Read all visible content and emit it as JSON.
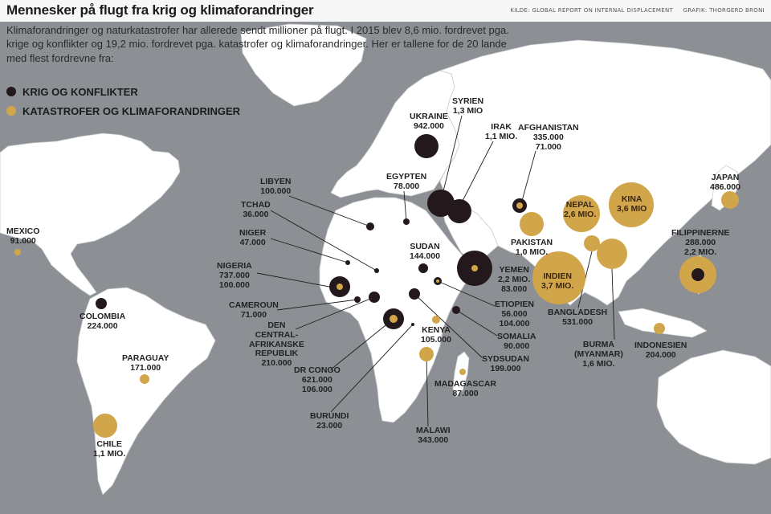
{
  "header": {
    "title": "Mennesker på flugt fra krig og klimaforandringer",
    "source": "KILDE: GLOBAL REPORT ON INTERNAL DISPLACEMENT",
    "credit": "GRAFIK: THORGERD BRONI"
  },
  "intro": "Klimaforandringer og naturkatastrofer har allerede sendt millioner på flugt. I 2015 blev 8,6 mio. fordrevet pga. krige og konflikter og 19,2 mio. fordrevet pga. katastrofer og klimaforan­dringer. Her er tallene for de 20 lande med flest fordrevne fra:",
  "legend": [
    {
      "label": "KRIG OG KONFLIKTER",
      "color": "#23181b"
    },
    {
      "label": "KATASTROFER OG KLIMAFORANDRINGER",
      "color": "#d1a54a"
    }
  ],
  "colors": {
    "conflict": "#23181b",
    "disaster": "#d1a54a",
    "land": "#ffffff",
    "sea": "#8c9094"
  },
  "countries": [
    {
      "id": "mexico",
      "lines": [
        "MEXICO",
        "91.000"
      ]
    },
    {
      "id": "colombia",
      "lines": [
        "COLOMBIA",
        "224.000"
      ]
    },
    {
      "id": "paraguay",
      "lines": [
        "PARAGUAY",
        "171.000"
      ]
    },
    {
      "id": "chile",
      "lines": [
        "CHILE",
        "1,1 MIO."
      ]
    },
    {
      "id": "libyen",
      "lines": [
        "LIBYEN",
        "100.000"
      ]
    },
    {
      "id": "tchad",
      "lines": [
        "TCHAD",
        "36.000"
      ]
    },
    {
      "id": "niger",
      "lines": [
        "NIGER",
        "47.000"
      ]
    },
    {
      "id": "nigeria",
      "lines": [
        "NIGERIA",
        "737.000",
        "100.000"
      ]
    },
    {
      "id": "cameroun",
      "lines": [
        "CAMEROUN",
        "71.000"
      ]
    },
    {
      "id": "car",
      "lines": [
        "DEN",
        "CENTRAL-",
        "AFRIKANSKE",
        "REPUBLIK",
        "210.000"
      ]
    },
    {
      "id": "drcongo",
      "lines": [
        "DR CONGO",
        "621.000",
        "106.000"
      ]
    },
    {
      "id": "burundi",
      "lines": [
        "BURUNDI",
        "23.000"
      ]
    },
    {
      "id": "malawi",
      "lines": [
        "MALAWI",
        "343.000"
      ]
    },
    {
      "id": "madagascar",
      "lines": [
        "MADAGASCAR",
        "87.000"
      ]
    },
    {
      "id": "kenya",
      "lines": [
        "KENYA",
        "105.000"
      ]
    },
    {
      "id": "sydsudan",
      "lines": [
        "SYDSUDAN",
        "199.000"
      ]
    },
    {
      "id": "somalia",
      "lines": [
        "SOMALIA",
        "90.000"
      ]
    },
    {
      "id": "etiopien",
      "lines": [
        "ETIOPIEN",
        "56.000",
        "104.000"
      ]
    },
    {
      "id": "yemen",
      "lines": [
        "YEMEN",
        "2,2 MIO.",
        "83.000"
      ]
    },
    {
      "id": "sudan",
      "lines": [
        "SUDAN",
        "144.000"
      ]
    },
    {
      "id": "egypten",
      "lines": [
        "EGYPTEN",
        "78.000"
      ]
    },
    {
      "id": "ukraine",
      "lines": [
        "UKRAINE",
        "942.000"
      ]
    },
    {
      "id": "syrien",
      "lines": [
        "SYRIEN",
        "1,3 MIO"
      ]
    },
    {
      "id": "irak",
      "lines": [
        "IRAK",
        "1,1 MIO."
      ]
    },
    {
      "id": "afghanistan",
      "lines": [
        "AFGHANISTAN",
        "335.000",
        "71.000"
      ]
    },
    {
      "id": "pakistan",
      "lines": [
        "PAKISTAN",
        "1,0 MIO."
      ]
    },
    {
      "id": "nepal",
      "lines": [
        "NEPAL",
        "2,6 MIO."
      ]
    },
    {
      "id": "kina",
      "lines": [
        "KINA",
        "3,6 MIO"
      ]
    },
    {
      "id": "indien",
      "lines": [
        "INDIEN",
        "3,7 MIO."
      ]
    },
    {
      "id": "bangladesh",
      "lines": [
        "BANGLADESH",
        "531.000"
      ]
    },
    {
      "id": "burma",
      "lines": [
        "BURMA",
        "(MYANMAR)",
        "1,6 MIO."
      ]
    },
    {
      "id": "japan",
      "lines": [
        "JAPAN",
        "486.000"
      ]
    },
    {
      "id": "filippinerne",
      "lines": [
        "FILIPPINERNE",
        "288.000",
        "2,2 MIO."
      ]
    },
    {
      "id": "indonesien",
      "lines": [
        "INDONESIEN",
        "204.000"
      ]
    }
  ]
}
